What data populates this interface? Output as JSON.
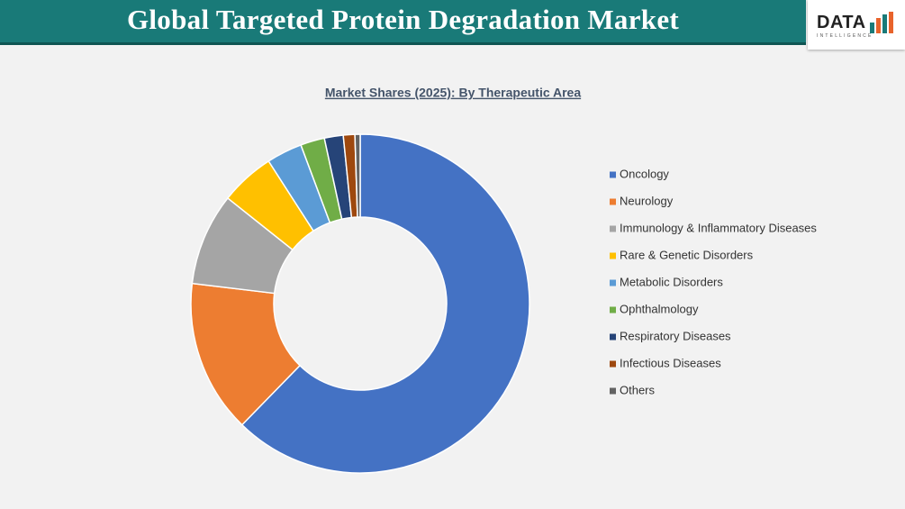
{
  "header": {
    "title": "Global Targeted Protein Degradation Market",
    "logo": {
      "text": "DATA",
      "subtext": "INTELLIGENCE"
    }
  },
  "chart_data": {
    "type": "donut",
    "title": "Market Shares (2025): By Therapeutic Area",
    "categories": [
      "Oncology",
      "Neurology",
      "Immunology & Inflammatory Diseases",
      "Rare & Genetic Disorders",
      "Metabolic Disorders",
      "Ophthalmology",
      "Respiratory Diseases",
      "Infectious Diseases",
      "Others"
    ],
    "values": [
      62.3,
      14.6,
      8.8,
      5.2,
      3.4,
      2.3,
      1.8,
      1.1,
      0.5
    ],
    "colors": [
      "#4472c4",
      "#ed7d31",
      "#a5a5a5",
      "#ffc000",
      "#5b9bd5",
      "#70ad47",
      "#264478",
      "#9e480e",
      "#636363"
    ],
    "legend": "right"
  }
}
